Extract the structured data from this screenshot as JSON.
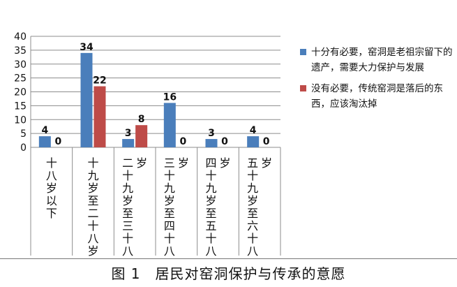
{
  "chart_data": {
    "type": "bar",
    "categories": [
      "十八岁以下",
      "十九岁至二十八岁",
      "二十九岁至三十八岁",
      "三十九岁至四十八岁",
      "四十九岁至五十八岁",
      "五十九岁至六十八岁"
    ],
    "category_label_columns": [
      [
        "十八岁以下"
      ],
      [
        "十九岁至二十八岁"
      ],
      [
        "二十九岁至三十八",
        "岁"
      ],
      [
        "三十九岁至四十八",
        "岁"
      ],
      [
        "四十九岁至五十八",
        "岁"
      ],
      [
        "五十九岁至六十八",
        "岁"
      ]
    ],
    "series": [
      {
        "name": "十分有必要，窑洞是老祖宗留下的遗产，需要大力保护与发展",
        "values": [
          4,
          34,
          3,
          16,
          3,
          4
        ],
        "color": "#4a7ebb"
      },
      {
        "name": "没有必要，传统窑洞是落后的东西，应该淘汰掉",
        "values": [
          0,
          22,
          8,
          0,
          0,
          0
        ],
        "color": "#be4b48"
      }
    ],
    "ylim": [
      0,
      40
    ],
    "yticks": [
      0,
      5,
      10,
      15,
      20,
      25,
      30,
      35,
      40
    ],
    "grid": true,
    "legend_position": "right"
  },
  "legend": {
    "items": [
      {
        "label": "十分有必要，窑洞是老祖宗留下的遗产，需要大力保护与发展",
        "color": "#4a7ebb"
      },
      {
        "label": "没有必要，传统窑洞是落后的东西，应该淘汰掉",
        "color": "#be4b48"
      }
    ]
  },
  "caption": "图 1　居民对窑洞保护与传承的意愿"
}
